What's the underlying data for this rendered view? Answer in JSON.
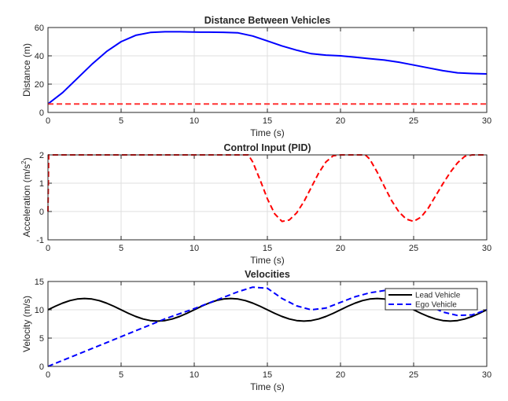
{
  "chart_data": [
    {
      "type": "line",
      "title": "Distance Between Vehicles",
      "xlabel": "Time (s)",
      "ylabel": "Distance (m)",
      "xlim": [
        0,
        30
      ],
      "ylim": [
        0,
        60
      ],
      "xticks": [
        0,
        5,
        10,
        15,
        20,
        25,
        30
      ],
      "yticks": [
        0,
        20,
        40,
        60
      ],
      "grid": true,
      "series": [
        {
          "color": "#0000ff",
          "style": "solid",
          "x": [
            0,
            1,
            2,
            3,
            4,
            5,
            6,
            7,
            8,
            9,
            10,
            11,
            12,
            13,
            14,
            15,
            16,
            17,
            18,
            19,
            20,
            21,
            22,
            23,
            24,
            25,
            26,
            27,
            28,
            29,
            30
          ],
          "y": [
            6,
            14,
            24,
            34,
            43,
            50,
            54.5,
            56.5,
            57,
            57,
            56.8,
            56.7,
            56.6,
            56.2,
            54,
            50.5,
            47,
            44,
            41.5,
            40.5,
            40,
            39,
            38,
            37,
            35.5,
            33.5,
            31.5,
            29.5,
            28,
            27.5,
            27.2
          ]
        },
        {
          "color": "#ff3333",
          "style": "dashed",
          "x": [
            0,
            30
          ],
          "y": [
            6,
            6
          ]
        }
      ]
    },
    {
      "type": "line",
      "title": "Control Input (PID)",
      "xlabel": "Time (s)",
      "ylabel": "Acceleration  (m/s",
      "ylabel_sup": "2",
      "ylabel_end": ")",
      "xlim": [
        0,
        30
      ],
      "ylim": [
        -1,
        2
      ],
      "xticks": [
        0,
        5,
        10,
        15,
        20,
        25,
        30
      ],
      "yticks": [
        -1,
        0,
        1,
        2
      ],
      "grid": true,
      "series": [
        {
          "color": "#ff0000",
          "style": "dashed",
          "x": [
            0,
            0.05,
            13.7,
            14,
            14.5,
            15,
            15.5,
            16,
            16.5,
            17,
            17.5,
            18,
            18.5,
            19,
            19.5,
            20,
            21.7,
            22,
            22.5,
            23,
            23.5,
            24,
            24.5,
            25,
            25.5,
            26,
            26.5,
            27,
            27.5,
            28,
            28.5,
            29,
            29.5,
            30
          ],
          "y": [
            0,
            2,
            2,
            1.75,
            1.12,
            0.45,
            -0.08,
            -0.35,
            -0.3,
            -0.05,
            0.35,
            0.85,
            1.35,
            1.75,
            1.97,
            2,
            2,
            1.85,
            1.4,
            0.88,
            0.38,
            -0.02,
            -0.27,
            -0.35,
            -0.2,
            0.12,
            0.55,
            0.98,
            1.38,
            1.72,
            1.95,
            2,
            2,
            2
          ]
        }
      ]
    },
    {
      "type": "line",
      "title": "Velocities",
      "xlabel": "Time (s)",
      "ylabel": "Velocity (m/s)",
      "xlim": [
        0,
        30
      ],
      "ylim": [
        0,
        15
      ],
      "xticks": [
        0,
        5,
        10,
        15,
        20,
        25,
        30
      ],
      "yticks": [
        0,
        5,
        10,
        15
      ],
      "grid": true,
      "legend": "top-right",
      "series": [
        {
          "name": "Lead Vehicle",
          "color": "#000000",
          "style": "solid",
          "x": [
            0,
            0.5,
            1,
            1.5,
            2,
            2.5,
            3,
            3.5,
            4,
            4.5,
            5,
            5.5,
            6,
            6.5,
            7,
            7.5,
            8,
            8.5,
            9,
            9.5,
            10,
            10.5,
            11,
            11.5,
            12,
            12.5,
            13,
            13.5,
            14,
            14.5,
            15,
            15.5,
            16,
            16.5,
            17,
            17.5,
            18,
            18.5,
            19,
            19.5,
            20,
            20.5,
            21,
            21.5,
            22,
            22.5,
            23,
            23.5,
            24,
            24.5,
            25,
            25.5,
            26,
            26.5,
            27,
            27.5,
            28,
            28.5,
            29,
            29.5,
            30
          ],
          "y": [
            10,
            10.62,
            11.18,
            11.62,
            11.9,
            12,
            11.9,
            11.62,
            11.18,
            10.62,
            10,
            9.38,
            8.82,
            8.38,
            8.1,
            8,
            8.1,
            8.38,
            8.82,
            9.38,
            10,
            10.62,
            11.18,
            11.62,
            11.9,
            12,
            11.9,
            11.62,
            11.18,
            10.62,
            10,
            9.38,
            8.82,
            8.38,
            8.1,
            8,
            8.1,
            8.38,
            8.82,
            9.38,
            10,
            10.62,
            11.18,
            11.62,
            11.9,
            12,
            11.9,
            11.62,
            11.18,
            10.62,
            10,
            9.38,
            8.82,
            8.38,
            8.1,
            8,
            8.1,
            8.38,
            8.82,
            9.38,
            10
          ]
        },
        {
          "name": "Ego Vehicle",
          "color": "#0000ff",
          "style": "dashed",
          "x": [
            0,
            1,
            2,
            3,
            4,
            5,
            6,
            7,
            8,
            9,
            10,
            11,
            12,
            13,
            14,
            15,
            16,
            17,
            18,
            19,
            20,
            21,
            22,
            23,
            24,
            25,
            26,
            27,
            28,
            29,
            30
          ],
          "y": [
            0,
            1.05,
            2.1,
            3.15,
            4.2,
            5.25,
            6.3,
            7.35,
            8.4,
            9.3,
            10.2,
            11.2,
            12.2,
            13.2,
            14,
            13.8,
            12,
            10.7,
            10,
            10.3,
            11.3,
            12.3,
            13,
            13.4,
            13.2,
            12.3,
            10.8,
            9.6,
            9,
            9.1,
            10
          ]
        }
      ]
    }
  ]
}
